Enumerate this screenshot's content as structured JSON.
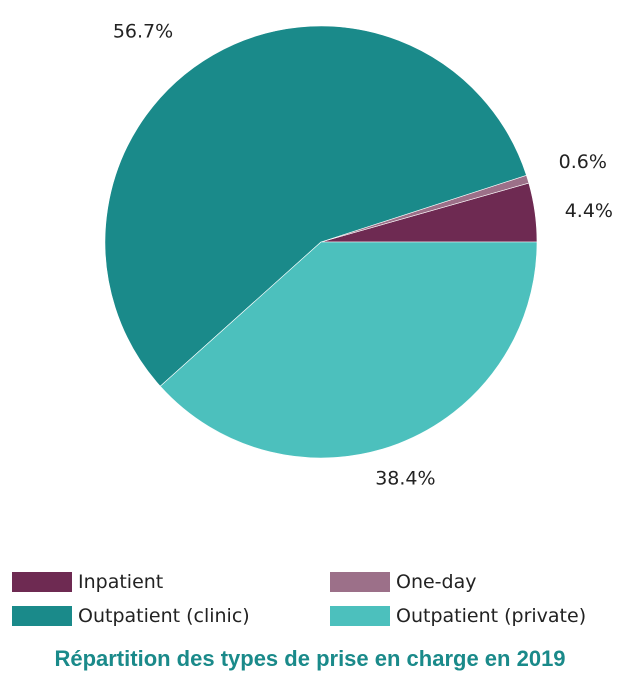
{
  "caption": {
    "text": "Répartition des types de prise en charge en 2019",
    "color": "#1a8a8a"
  },
  "chart_data": {
    "type": "pie",
    "slices": [
      {
        "name": "Inpatient",
        "value": 4.4,
        "label": "4.4%",
        "color": "#6e2a52"
      },
      {
        "name": "One-day",
        "value": 0.6,
        "label": "0.6%",
        "color": "#9c7089"
      },
      {
        "name": "Outpatient (clinic)",
        "value": 56.7,
        "label": "56.7%",
        "color": "#1a8a8a"
      },
      {
        "name": "Outpatient (private)",
        "value": 38.4,
        "label": "38.4%",
        "color": "#4cc0bd"
      }
    ],
    "direction": "counterclockwise",
    "start_angle_deg": 0,
    "legend_position": "bottom"
  }
}
